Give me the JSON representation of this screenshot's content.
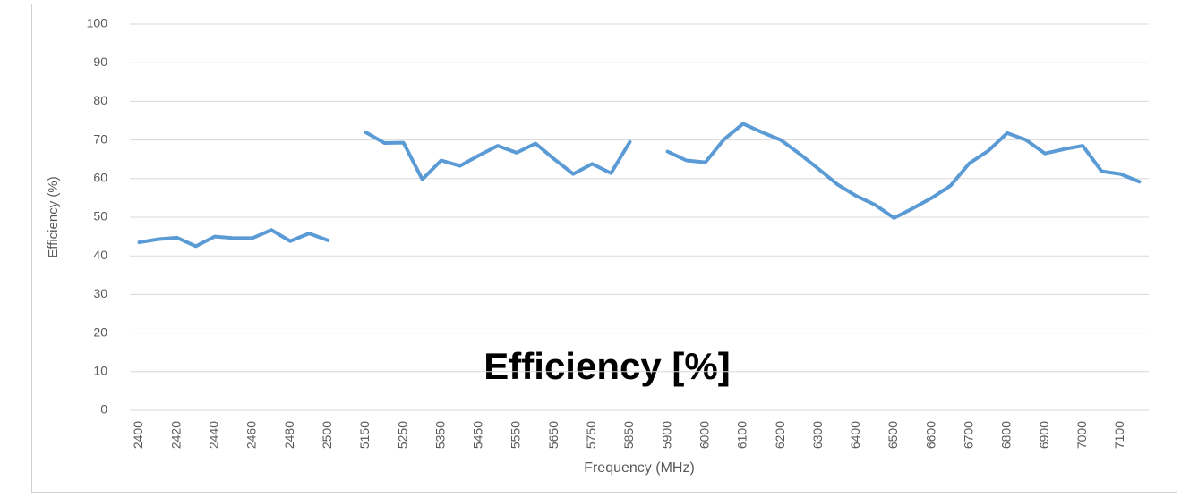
{
  "chart_data": {
    "type": "line",
    "annotation": "Efficiency [%]",
    "xlabel": "Frequency (MHz)",
    "ylabel": "Efficiency (%)",
    "categories": [
      "2400",
      null,
      "2420",
      null,
      "2440",
      null,
      "2460",
      null,
      "2480",
      null,
      "2500",
      null,
      "5150",
      null,
      "5250",
      null,
      "5350",
      null,
      "5450",
      null,
      "5550",
      null,
      "5650",
      null,
      "5750",
      null,
      "5850",
      null,
      "5900",
      null,
      "6000",
      null,
      "6100",
      null,
      "6200",
      null,
      "6300",
      null,
      "6400",
      null,
      "6500",
      null,
      "6600",
      null,
      "6700",
      null,
      "6800",
      null,
      "6900",
      null,
      "7000",
      null,
      "7100",
      null
    ],
    "series": [
      {
        "name": "Efficiency",
        "color": "#5b9bd5",
        "values": [
          43.5,
          44.3,
          44.7,
          42.5,
          45,
          44.6,
          44.6,
          46.7,
          43.8,
          45.8,
          44,
          null,
          72,
          69.2,
          69.3,
          59.8,
          64.7,
          63.3,
          66,
          68.5,
          66.7,
          69.1,
          65,
          61.2,
          63.8,
          61.4,
          69.5,
          null,
          67,
          64.7,
          64.2,
          70.2,
          74.2,
          72,
          70,
          66.4,
          62.5,
          58.5,
          55.5,
          53.2,
          49.8,
          52.3,
          55,
          58.2,
          64,
          67.2,
          71.8,
          70,
          66.5,
          67.6,
          68.5,
          61.9,
          61.2,
          59.2
        ]
      }
    ],
    "ylim": [
      0,
      100
    ],
    "yticks": [
      0,
      10,
      20,
      30,
      40,
      50,
      60,
      70,
      80,
      90,
      100
    ],
    "grid": true
  }
}
